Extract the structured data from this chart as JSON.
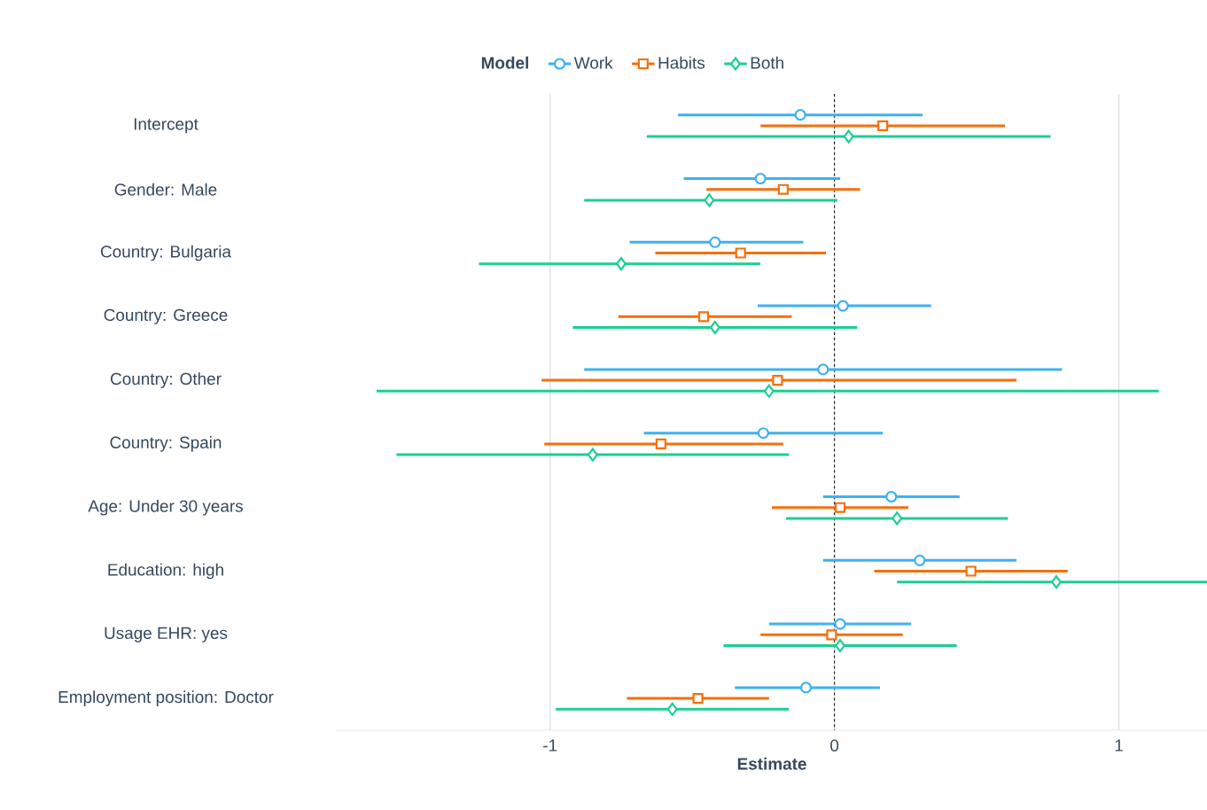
{
  "chart_data": {
    "type": "scatter",
    "orientation": "horizontal",
    "xlabel": "Estimate",
    "legend_title": "Model",
    "categories": [
      "Intercept",
      "Gender: Male",
      "Country: Bulgaria",
      "Country: Greece",
      "Country: Other",
      "Country: Spain",
      "Age: Under 30 years",
      "Education: high",
      "Usage EHR: yes",
      "Employment position: Doctor"
    ],
    "series": [
      {
        "name": "Work",
        "color": "#3db1f5",
        "marker": "circle",
        "values": [
          -0.12,
          -0.26,
          -0.42,
          0.03,
          -0.04,
          -0.25,
          0.2,
          0.3,
          0.02,
          -0.1
        ],
        "errors": [
          [
            -0.55,
            0.31
          ],
          [
            -0.53,
            0.02
          ],
          [
            -0.72,
            -0.11
          ],
          [
            -0.27,
            0.34
          ],
          [
            -0.88,
            0.8
          ],
          [
            -0.67,
            0.17
          ],
          [
            -0.04,
            0.44
          ],
          [
            -0.04,
            0.64
          ],
          [
            -0.23,
            0.27
          ],
          [
            -0.35,
            0.16
          ]
        ]
      },
      {
        "name": "Habits",
        "color": "#f56f0a",
        "marker": "square",
        "values": [
          0.17,
          -0.18,
          -0.33,
          -0.46,
          -0.2,
          -0.61,
          0.02,
          0.48,
          -0.01,
          -0.48
        ],
        "errors": [
          [
            -0.26,
            0.6
          ],
          [
            -0.45,
            0.09
          ],
          [
            -0.63,
            -0.03
          ],
          [
            -0.76,
            -0.15
          ],
          [
            -1.03,
            0.64
          ],
          [
            -1.02,
            -0.18
          ],
          [
            -0.22,
            0.26
          ],
          [
            0.14,
            0.82
          ],
          [
            -0.26,
            0.24
          ],
          [
            -0.73,
            -0.23
          ]
        ]
      },
      {
        "name": "Both",
        "color": "#1ccf8f",
        "marker": "diamond",
        "values": [
          0.05,
          -0.44,
          -0.75,
          -0.42,
          -0.23,
          -0.85,
          0.22,
          0.78,
          0.02,
          -0.57
        ],
        "errors": [
          [
            -0.66,
            0.76
          ],
          [
            -0.88,
            0.01
          ],
          [
            -1.25,
            -0.26
          ],
          [
            -0.92,
            0.08
          ],
          [
            -1.61,
            1.14
          ],
          [
            -1.54,
            -0.16
          ],
          [
            -0.17,
            0.61
          ],
          [
            0.22,
            1.31
          ],
          [
            -0.39,
            0.43
          ],
          [
            -0.98,
            -0.16
          ]
        ]
      }
    ],
    "xlim": [
      -1.75,
      1.31
    ],
    "xticks": [
      -1,
      0,
      1
    ],
    "grid": "x",
    "legend": "top",
    "ref_lines": [
      {
        "axis": "x",
        "value": 0,
        "color": "#000000",
        "line_style": "dashed"
      }
    ]
  }
}
